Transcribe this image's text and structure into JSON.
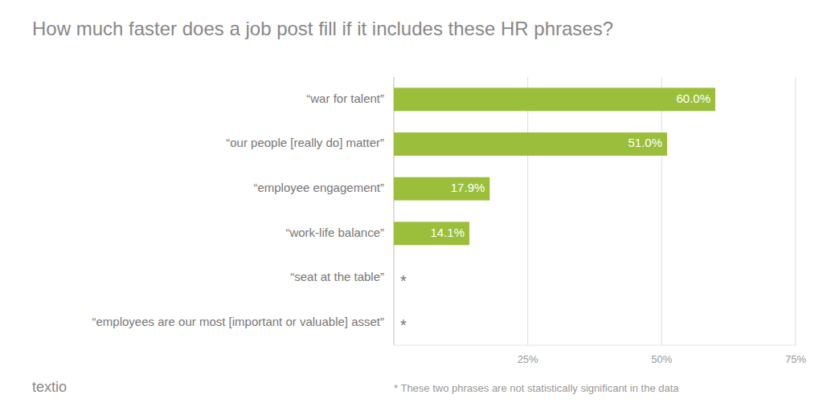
{
  "chart_data": {
    "type": "bar",
    "orientation": "horizontal",
    "title": "How much faster does a job post fill if it includes these HR phrases?",
    "categories": [
      "“war for talent”",
      "“our people [really do] matter”",
      "“employee engagement”",
      "“work-life balance”",
      "“seat at the table”",
      "“employees are our most [important or valuable] asset”"
    ],
    "values": [
      60.0,
      51.0,
      17.9,
      14.1,
      null,
      null
    ],
    "value_labels": [
      "60.0%",
      "51.0%",
      "17.9%",
      "14.1%",
      "*",
      "*"
    ],
    "data_labels": true,
    "color": "#9BBF3B",
    "xlim": [
      0,
      75
    ],
    "xticks": [
      {
        "value": 25,
        "label": "25%"
      },
      {
        "value": 50,
        "label": "50%"
      },
      {
        "value": 75,
        "label": "75%"
      }
    ],
    "grid": true,
    "annotations": [
      "* These two phrases are not statistically significant in the data",
      "textio"
    ]
  }
}
